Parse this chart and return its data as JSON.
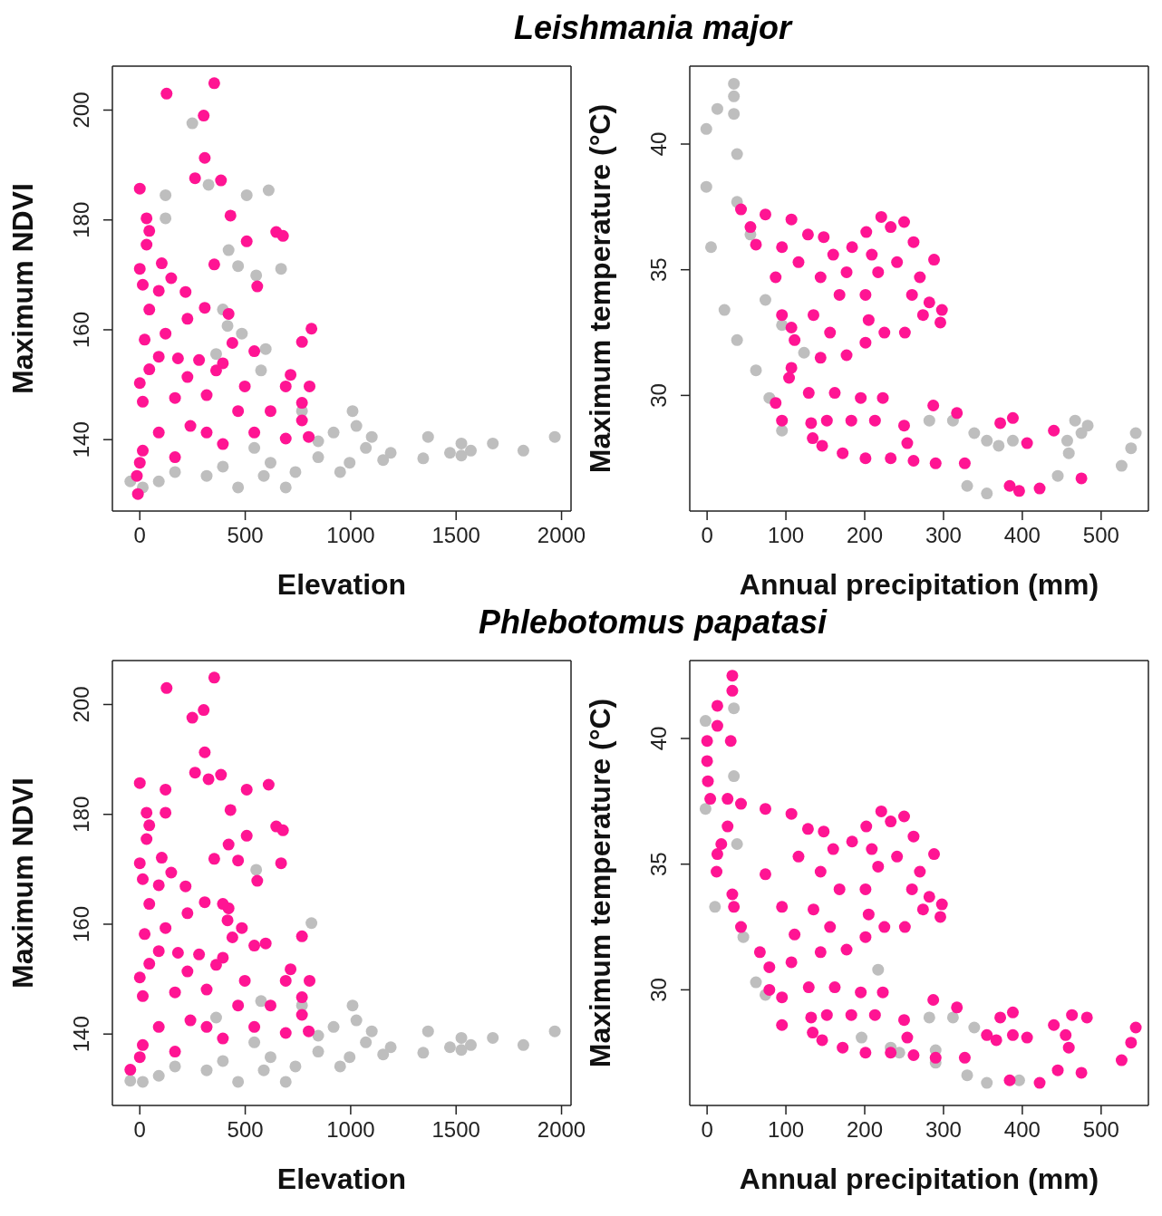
{
  "chart_data": [
    {
      "type": "scatter",
      "title": "Leishmania major",
      "xlabel": "Elevation",
      "ylabel": "Maximum NDVI",
      "xlim": [
        -130,
        2045
      ],
      "ylim": [
        127,
        208
      ],
      "xticks": [
        0,
        500,
        1000,
        1500,
        2000
      ],
      "yticks": [
        140,
        160,
        180,
        200
      ],
      "grid": false,
      "legend": false,
      "marker": "circle",
      "series": [
        {
          "color": "#bebebe",
          "x": [
            249,
            326,
            122,
            507,
            611,
            122,
            421,
            466,
            552,
            670,
            394,
            416,
            484,
            362,
            597,
            575,
            1009,
            1027,
            1100,
            1190,
            1154,
            1367,
            1344,
            1471,
            1525,
            1570,
            1525,
            1674,
            1819,
            1968,
            -45,
            90,
            317,
            466,
            692,
            620,
            846,
            995,
            919,
            769,
            846,
            1072,
            543,
            394,
            167,
            14,
            738,
            950,
            588
          ],
          "values": [
            197.6,
            186.4,
            184.5,
            184.5,
            185.4,
            180.3,
            174.5,
            171.6,
            169.9,
            171.1,
            163.7,
            160.7,
            159.3,
            155.6,
            156.5,
            152.6,
            145.2,
            142.5,
            140.5,
            137.6,
            136.3,
            140.5,
            136.6,
            137.6,
            139.3,
            138,
            137.1,
            139.3,
            138,
            140.5,
            132.4,
            132.4,
            133.4,
            131.3,
            131.3,
            135.8,
            136.8,
            135.8,
            141.3,
            145.2,
            139.7,
            138.5,
            138.5,
            135.1,
            134.1,
            131.3,
            134.1,
            134.1,
            133.4
          ]
        },
        {
          "color": "#ff1493",
          "x": [
            353,
            127,
            303,
            308,
            262,
            385,
            0,
            430,
            507,
            647,
            679,
            353,
            557,
            32,
            45,
            32,
            0,
            104,
            149,
            14,
            90,
            217,
            45,
            226,
            23,
            122,
            308,
            421,
            439,
            543,
            769,
            814,
            90,
            181,
            281,
            394,
            45,
            226,
            362,
            715,
            805,
            0,
            498,
            692,
            769,
            769,
            801,
            466,
            620,
            317,
            167,
            14,
            90,
            317,
            543,
            692,
            14,
            167,
            394,
            -14,
            -9,
            0,
            240
          ],
          "values": [
            204.9,
            203,
            199,
            191.3,
            187.6,
            187.2,
            185.7,
            180.8,
            176.1,
            177.8,
            177.1,
            171.9,
            167.9,
            180.3,
            178,
            175.5,
            171.1,
            172.1,
            169.4,
            168.2,
            167.1,
            166.9,
            163.7,
            162,
            158.2,
            159.3,
            164,
            162.9,
            157.6,
            156.1,
            157.8,
            160.2,
            155.1,
            154.8,
            154.5,
            153.9,
            152.8,
            151.4,
            152.6,
            151.8,
            149.7,
            150.3,
            149.7,
            149.7,
            146.7,
            143.5,
            140.5,
            145.2,
            145.2,
            148.1,
            147.6,
            146.9,
            141.3,
            141.3,
            141.3,
            140.2,
            138,
            136.8,
            139.2,
            133.4,
            130.1,
            135.8,
            142.5
          ]
        }
      ]
    },
    {
      "type": "scatter",
      "xlabel": "Annual precipitation (mm)",
      "ylabel": "Maximum temperature (°C)",
      "xlim": [
        -22,
        560
      ],
      "ylim": [
        25.4,
        43.1
      ],
      "xticks": [
        0,
        100,
        200,
        300,
        400,
        500
      ],
      "yticks": [
        30,
        35,
        40
      ],
      "grid": false,
      "legend": false,
      "marker": "circle",
      "series": [
        {
          "color": "#bebebe",
          "x": [
            34,
            34,
            13,
            34,
            -1,
            -1,
            38,
            38,
            5,
            55,
            22,
            74,
            38,
            95,
            62,
            79,
            95,
            123,
            282,
            312,
            339,
            355,
            370,
            388,
            330,
            355,
            445,
            467,
            483,
            475,
            457,
            459,
            526,
            538,
            544
          ],
          "values": [
            42.4,
            41.9,
            41.4,
            41.2,
            40.6,
            38.3,
            39.6,
            37.7,
            35.9,
            36.4,
            33.4,
            33.8,
            32.2,
            32.8,
            31,
            29.9,
            28.6,
            31.7,
            29,
            29,
            28.5,
            28.2,
            28,
            28.2,
            26.4,
            26.1,
            26.8,
            29,
            28.8,
            28.5,
            28.2,
            27.7,
            27.2,
            27.9,
            28.5
          ]
        },
        {
          "color": "#ff1493",
          "x": [
            95,
            107,
            129,
            162,
            195,
            223,
            287,
            317,
            372,
            388,
            440,
            406,
            475,
            384,
            396,
            422,
            290,
            327,
            262,
            233,
            201,
            172,
            146,
            134,
            254,
            250,
            213,
            183,
            152,
            132,
            95,
            87,
            104,
            221,
            250,
            233,
            202,
            262,
            288,
            241,
            270,
            260,
            282,
            296,
            298,
            274,
            251,
            225,
            43,
            74,
            107,
            148,
            184,
            209,
            217,
            201,
            205,
            201,
            177,
            144,
            111,
            107,
            87,
            62,
            55,
            116,
            144,
            168,
            135,
            156,
            95,
            177,
            128,
            160
          ],
          "values": [
            33.2,
            31.1,
            30.1,
            30.1,
            29.9,
            29.9,
            29.6,
            29.3,
            28.9,
            29.1,
            28.6,
            28.1,
            26.7,
            26.4,
            26.2,
            26.3,
            27.3,
            27.3,
            27.4,
            27.5,
            27.5,
            27.7,
            28,
            28.3,
            28.1,
            28.8,
            29,
            29,
            29,
            28.9,
            29,
            29.7,
            30.7,
            37.1,
            36.9,
            36.7,
            36.5,
            36.1,
            35.4,
            35.3,
            34.7,
            34,
            33.7,
            32.9,
            33.4,
            33.2,
            32.5,
            32.5,
            37.4,
            37.2,
            37,
            36.3,
            35.9,
            35.6,
            34.9,
            34,
            33,
            32.1,
            31.6,
            31.5,
            32.2,
            32.7,
            34.7,
            36,
            36.7,
            35.3,
            34.7,
            34,
            33.2,
            32.5,
            35.9,
            34.9,
            36.4,
            35.6
          ]
        }
      ]
    },
    {
      "type": "scatter",
      "title": "Phlebotomus papatasi",
      "xlabel": "Elevation",
      "ylabel": "Maximum NDVI",
      "xlim": [
        -130,
        2045
      ],
      "ylim": [
        127,
        208
      ],
      "xticks": [
        0,
        500,
        1000,
        1500,
        2000
      ],
      "yticks": [
        140,
        160,
        180,
        200
      ],
      "grid": false,
      "legend": false,
      "marker": "circle",
      "series": [
        {
          "color": "#bebebe",
          "x": [
            814,
            552,
            1009,
            1027,
            1100,
            1190,
            1154,
            1367,
            1344,
            1471,
            1525,
            1570,
            1525,
            1674,
            1819,
            1968,
            -45,
            90,
            317,
            466,
            692,
            620,
            846,
            995,
            919,
            769,
            846,
            1072,
            543,
            394,
            167,
            14,
            738,
            950,
            588,
            362,
            575
          ],
          "values": [
            160.2,
            169.9,
            145.2,
            142.5,
            140.5,
            137.6,
            136.3,
            140.5,
            136.6,
            137.6,
            139.3,
            138,
            137.1,
            139.3,
            138,
            140.5,
            131.5,
            132.4,
            133.4,
            131.3,
            131.3,
            135.8,
            136.8,
            135.8,
            141.3,
            145.2,
            139.7,
            138.5,
            138.5,
            135.1,
            134.1,
            131.3,
            134.1,
            134.1,
            133.4,
            143,
            146
          ]
        },
        {
          "color": "#ff1493",
          "x": [
            353,
            127,
            303,
            308,
            262,
            385,
            0,
            430,
            507,
            647,
            679,
            353,
            557,
            32,
            45,
            32,
            0,
            104,
            149,
            14,
            90,
            217,
            45,
            226,
            23,
            122,
            308,
            421,
            439,
            543,
            769,
            90,
            181,
            281,
            394,
            45,
            226,
            362,
            715,
            805,
            0,
            498,
            692,
            769,
            769,
            801,
            466,
            620,
            317,
            167,
            14,
            90,
            317,
            543,
            692,
            14,
            167,
            394,
            -45,
            0,
            240,
            249,
            326,
            122,
            507,
            611,
            122,
            421,
            466,
            670,
            394,
            416,
            484,
            597
          ],
          "values": [
            204.9,
            203,
            199,
            191.3,
            187.6,
            187.2,
            185.7,
            180.8,
            176.1,
            177.8,
            177.1,
            171.9,
            167.9,
            180.3,
            178,
            175.5,
            171.1,
            172.1,
            169.4,
            168.2,
            167.1,
            166.9,
            163.7,
            162,
            158.2,
            159.3,
            164,
            162.9,
            157.6,
            156.1,
            157.8,
            155.1,
            154.8,
            154.5,
            153.9,
            152.8,
            151.4,
            152.6,
            151.8,
            149.7,
            150.3,
            149.7,
            149.7,
            146.7,
            143.5,
            140.5,
            145.2,
            145.2,
            148.1,
            147.6,
            146.9,
            141.3,
            141.3,
            141.3,
            140.2,
            138,
            136.8,
            139.2,
            133.5,
            135.8,
            142.5,
            197.6,
            186.4,
            184.5,
            184.5,
            185.4,
            180.3,
            174.5,
            171.6,
            171.1,
            163.7,
            160.7,
            159.3,
            156.5
          ]
        }
      ]
    },
    {
      "type": "scatter",
      "xlabel": "Annual precipitation (mm)",
      "ylabel": "Maximum temperature (°C)",
      "xlim": [
        -22,
        560
      ],
      "ylim": [
        25.4,
        43.1
      ],
      "xticks": [
        0,
        100,
        200,
        300,
        400,
        500
      ],
      "yticks": [
        30,
        35,
        40
      ],
      "grid": false,
      "legend": false,
      "marker": "circle",
      "series": [
        {
          "color": "#bebebe",
          "x": [
            -2,
            34,
            -2,
            34,
            10,
            46,
            62,
            74,
            38,
            282,
            312,
            339,
            196,
            233,
            244,
            290,
            290,
            330,
            355,
            396,
            217
          ],
          "values": [
            40.7,
            41.2,
            37.2,
            38.5,
            33.3,
            32.1,
            30.3,
            29.8,
            35.8,
            28.9,
            28.9,
            28.5,
            28.1,
            27.7,
            27.5,
            27.6,
            27.1,
            26.6,
            26.3,
            26.4,
            30.8
          ]
        },
        {
          "color": "#ff1493",
          "x": [
            32,
            32,
            13,
            13,
            0,
            30,
            0,
            1,
            4,
            26,
            26,
            18,
            13,
            12,
            32,
            34,
            43,
            67,
            79,
            79,
            95,
            95,
            463,
            482,
            455,
            459,
            445,
            526,
            538,
            544,
            355,
            388,
            367,
            74,
            95,
            107,
            129,
            162,
            195,
            223,
            287,
            317,
            372,
            388,
            440,
            406,
            475,
            384,
            422,
            290,
            327,
            262,
            233,
            201,
            172,
            146,
            134,
            254,
            250,
            213,
            183,
            152,
            132,
            221,
            250,
            233,
            202,
            262,
            288,
            241,
            270,
            260,
            282,
            296,
            298,
            274,
            251,
            225,
            43,
            74,
            107,
            148,
            184,
            209,
            217,
            201,
            205,
            201,
            177,
            144,
            111,
            116,
            144,
            168,
            135,
            156,
            128,
            160
          ],
          "values": [
            42.5,
            41.9,
            41.3,
            40.5,
            39.9,
            39.9,
            39.1,
            38.3,
            37.6,
            37.6,
            36.5,
            35.8,
            35.4,
            34.7,
            33.8,
            33.3,
            32.5,
            31.5,
            30.9,
            30,
            29.7,
            28.6,
            29,
            28.9,
            28.2,
            27.7,
            26.8,
            27.2,
            27.9,
            28.5,
            28.2,
            28.2,
            28,
            34.6,
            33.3,
            31.1,
            30.1,
            30.1,
            29.9,
            29.9,
            29.6,
            29.3,
            28.9,
            29.1,
            28.6,
            28.1,
            26.7,
            26.4,
            26.3,
            27.3,
            27.3,
            27.4,
            27.5,
            27.5,
            27.7,
            28,
            28.3,
            28.1,
            28.8,
            29,
            29,
            29,
            28.9,
            37.1,
            36.9,
            36.7,
            36.5,
            36.1,
            35.4,
            35.3,
            34.7,
            34,
            33.7,
            32.9,
            33.4,
            33.2,
            32.5,
            32.5,
            37.4,
            37.2,
            37,
            36.3,
            35.9,
            35.6,
            34.9,
            34,
            33,
            32.1,
            31.6,
            31.5,
            32.2,
            35.3,
            34.7,
            34,
            33.2,
            32.5,
            36.4,
            35.6
          ]
        }
      ]
    }
  ]
}
